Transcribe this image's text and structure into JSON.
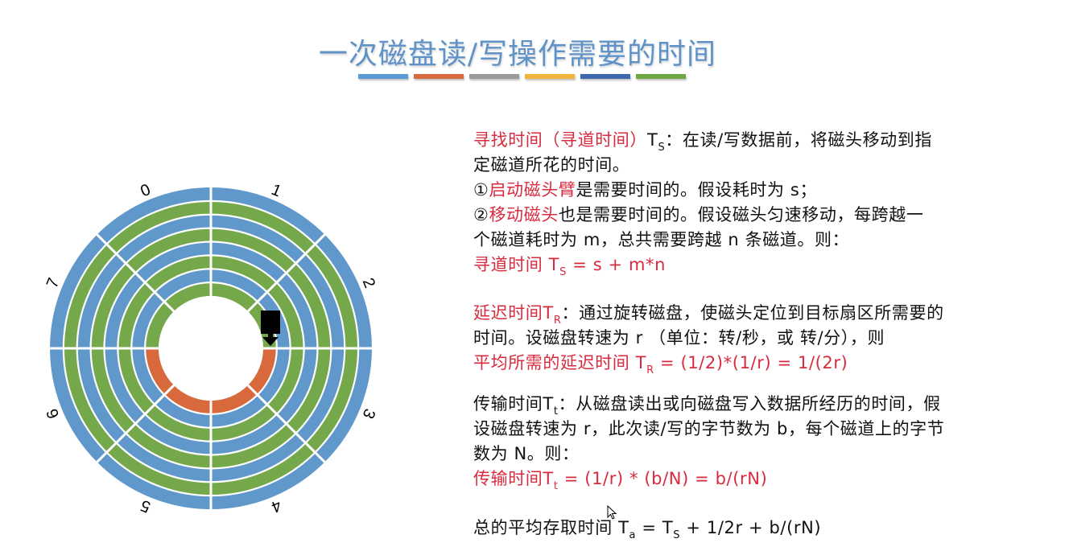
{
  "slide": {
    "title": "一次磁盘读/写操作需要的时间",
    "title_color": "#5f93c8",
    "divider_colors": [
      "#5b9bd5",
      "#d76a3f",
      "#9a9a9a",
      "#efb43c",
      "#3e68ae",
      "#6fa745"
    ]
  },
  "disk": {
    "sector_labels": [
      "0",
      "1",
      "2",
      "3",
      "4",
      "5",
      "6",
      "7"
    ],
    "track_count": 8,
    "colors": {
      "blue": "#6198cb",
      "green": "#74a84a",
      "highlight": "#d8693d",
      "head": "#000000"
    },
    "highlighted_track": "innermost",
    "highlighted_sectors": [
      "3",
      "4",
      "5",
      "6"
    ],
    "head_icon": "disk-head-arrow-icon"
  },
  "text_color_red": "#d92a3e",
  "lines": [
    [
      {
        "t": "寻找时间（寻道时间）",
        "s": "r"
      },
      {
        "t": "T",
        "s": ""
      },
      {
        "t": "S",
        "s": "sub"
      },
      {
        "t": "：在读/写数据前，将磁头移动到指",
        "s": ""
      }
    ],
    [
      {
        "t": "定磁道所花的时间。",
        "s": ""
      }
    ],
    [
      {
        "t": "①",
        "s": ""
      },
      {
        "t": "启动磁头臂",
        "s": "r"
      },
      {
        "t": "是需要时间的。假设耗时为 s；",
        "s": ""
      }
    ],
    [
      {
        "t": "②",
        "s": ""
      },
      {
        "t": "移动磁头",
        "s": "r"
      },
      {
        "t": "也是需要时间的。假设磁头匀速移动，每跨越一",
        "s": ""
      }
    ],
    [
      {
        "t": "个磁道耗时为 m，总共需要跨越 n 条磁道。则：",
        "s": ""
      }
    ],
    [
      {
        "t": "寻道时间 T",
        "s": "r"
      },
      {
        "t": "S",
        "s": "rsub"
      },
      {
        "t": " = s + m*n",
        "s": "r"
      }
    ],
    [
      {
        "t": "延迟时间T",
        "s": "r"
      },
      {
        "t": "R",
        "s": "rsub"
      },
      {
        "t": "：通过旋转磁盘，使磁头定位到目标扇区所需要的",
        "s": ""
      }
    ],
    [
      {
        "t": "时间。设磁盘转速为 r （单位：转/秒，或 转/分），则",
        "s": ""
      }
    ],
    [
      {
        "t": "平均所需的延迟时间 T",
        "s": "r"
      },
      {
        "t": "R",
        "s": "rsub"
      },
      {
        "t": " = (1/2)*(1/r) = 1/(2r)",
        "s": "r"
      }
    ],
    [
      {
        "t": "传输时间T",
        "s": ""
      },
      {
        "t": "t",
        "s": "sub"
      },
      {
        "t": "：从磁盘读出或向磁盘写入数据所经历的时间，假",
        "s": ""
      }
    ],
    [
      {
        "t": "设磁盘转速为 r，此次读/写的字节数为 b，每个磁道上的字节",
        "s": ""
      }
    ],
    [
      {
        "t": "数为 N。则：",
        "s": ""
      }
    ],
    [
      {
        "t": "传输时间T",
        "s": "r"
      },
      {
        "t": "t",
        "s": "rsub"
      },
      {
        "t": " = (1/r) * (b/N) = b/(rN)",
        "s": "r"
      }
    ],
    [
      {
        "t": "总的平均存取时间 T",
        "s": ""
      },
      {
        "t": "a",
        "s": "sub"
      },
      {
        "t": " = T",
        "s": ""
      },
      {
        "t": "S",
        "s": "sub"
      },
      {
        "t": " + 1/2r + b/(rN)",
        "s": ""
      }
    ]
  ]
}
